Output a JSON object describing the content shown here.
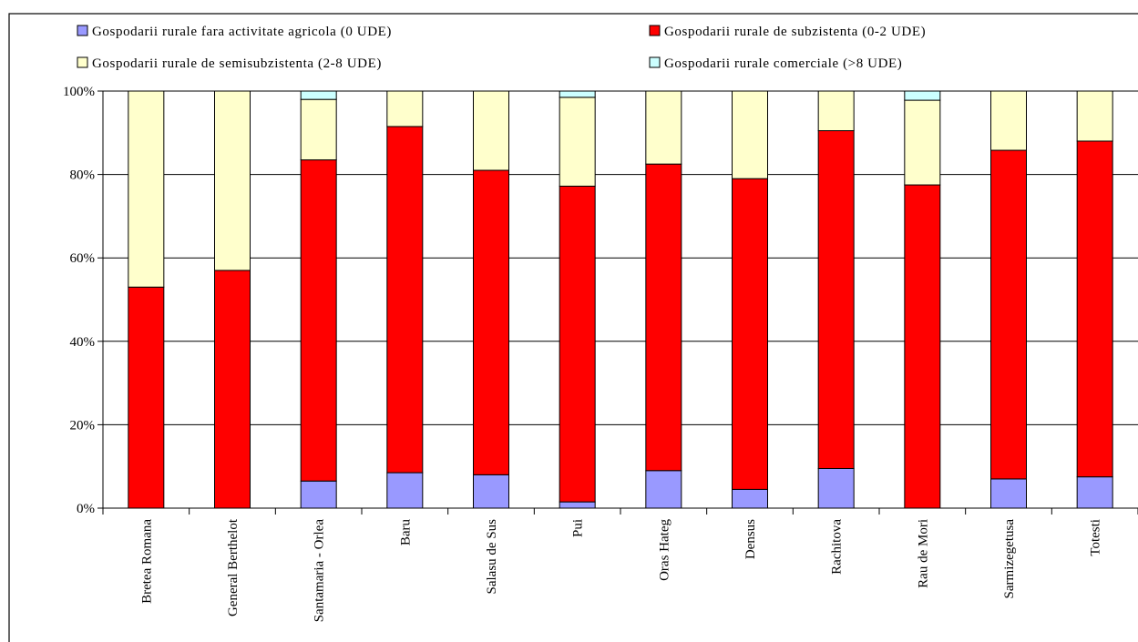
{
  "chart_data": {
    "type": "bar",
    "stacked": true,
    "percent": true,
    "title": "",
    "xlabel": "",
    "ylabel": "",
    "ylim": [
      0,
      100
    ],
    "y_ticks": [
      "0%",
      "20%",
      "40%",
      "60%",
      "80%",
      "100%"
    ],
    "grid": true,
    "legend_position": "top",
    "categories": [
      "Bretea Romana",
      "General Berthelot",
      "Santamaria - Orlea",
      "Baru",
      "Salasu de Sus",
      "Pui",
      "Oras Hateg",
      "Densus",
      "Rachitova",
      "Rau de Mori",
      "Sarmizegetusa",
      "Totesti"
    ],
    "series": [
      {
        "name": "Gospodarii rurale fara activitate agricola (0 UDE)",
        "color": "#9999FF",
        "values": [
          0,
          0,
          6.5,
          8.5,
          8,
          1.5,
          9,
          4.5,
          9.5,
          0,
          7,
          7.5
        ]
      },
      {
        "name": "Gospodarii rurale de subzistenta (0-2 UDE)",
        "color": "#FF0000",
        "values": [
          53,
          57,
          77,
          83,
          73,
          75.7,
          73.5,
          74.5,
          81,
          77.5,
          78.8,
          80.5
        ]
      },
      {
        "name": "Gospodarii rurale de semisubzistenta (2-8 UDE)",
        "color": "#FFFFCC",
        "values": [
          47,
          43,
          14.5,
          8.5,
          19,
          21.3,
          17.5,
          21,
          9.5,
          20.3,
          14.2,
          12
        ]
      },
      {
        "name": "Gospodarii rurale comerciale (>8 UDE)",
        "color": "#CCFFFF",
        "values": [
          0,
          0,
          2,
          0,
          0,
          1.5,
          0,
          0,
          0,
          2.2,
          0,
          0
        ]
      }
    ]
  }
}
